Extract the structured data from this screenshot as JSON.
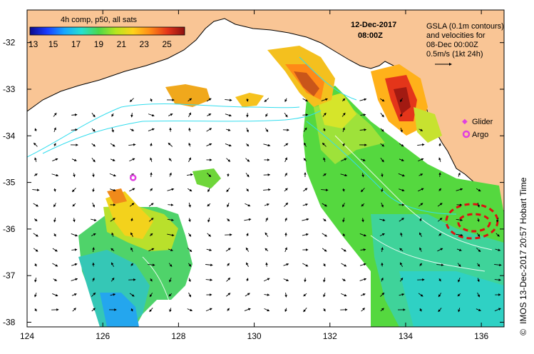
{
  "colorbar": {
    "title": "4h comp, p50, all sats",
    "ticks": [
      "13",
      "15",
      "17",
      "19",
      "21",
      "23",
      "25"
    ],
    "stops": [
      "#0b0a8c",
      "#1a3cff",
      "#16a6ff",
      "#25e0d0",
      "#4cd84a",
      "#b6e61f",
      "#ffd21a",
      "#ff8a17",
      "#e4351a",
      "#8c1010"
    ]
  },
  "header": {
    "date": "12-Dec-2017",
    "time": "08:00Z"
  },
  "legend_note": {
    "line1": "GSLA (0.1m contours)",
    "line2": "and velocities for",
    "line3": "08-Dec 00:00Z",
    "scale": "0.5m/s (1kt 24h)"
  },
  "markers": {
    "glider_label": "Glider",
    "argo_label": "Argo",
    "glider_color": "#e040e0",
    "argo_color": "#e040e0"
  },
  "credit": "IMOS 13-Dec-2017 20:57 Hobart Time",
  "credit_symbol": "©",
  "axes": {
    "x_ticks": [
      "124",
      "126",
      "128",
      "130",
      "132",
      "134",
      "136"
    ],
    "y_ticks": [
      "-32",
      "-33",
      "-34",
      "-35",
      "-36",
      "-37",
      "-38"
    ],
    "x_range": [
      124,
      136.6
    ],
    "y_range": [
      -38.1,
      -31.3
    ]
  },
  "colors": {
    "land": "#f9c595",
    "ocean": "#ffffff",
    "contour": "#33ddee",
    "eddy": "#dd1111"
  },
  "argo_position": {
    "lon": 126.8,
    "lat": -34.9
  }
}
